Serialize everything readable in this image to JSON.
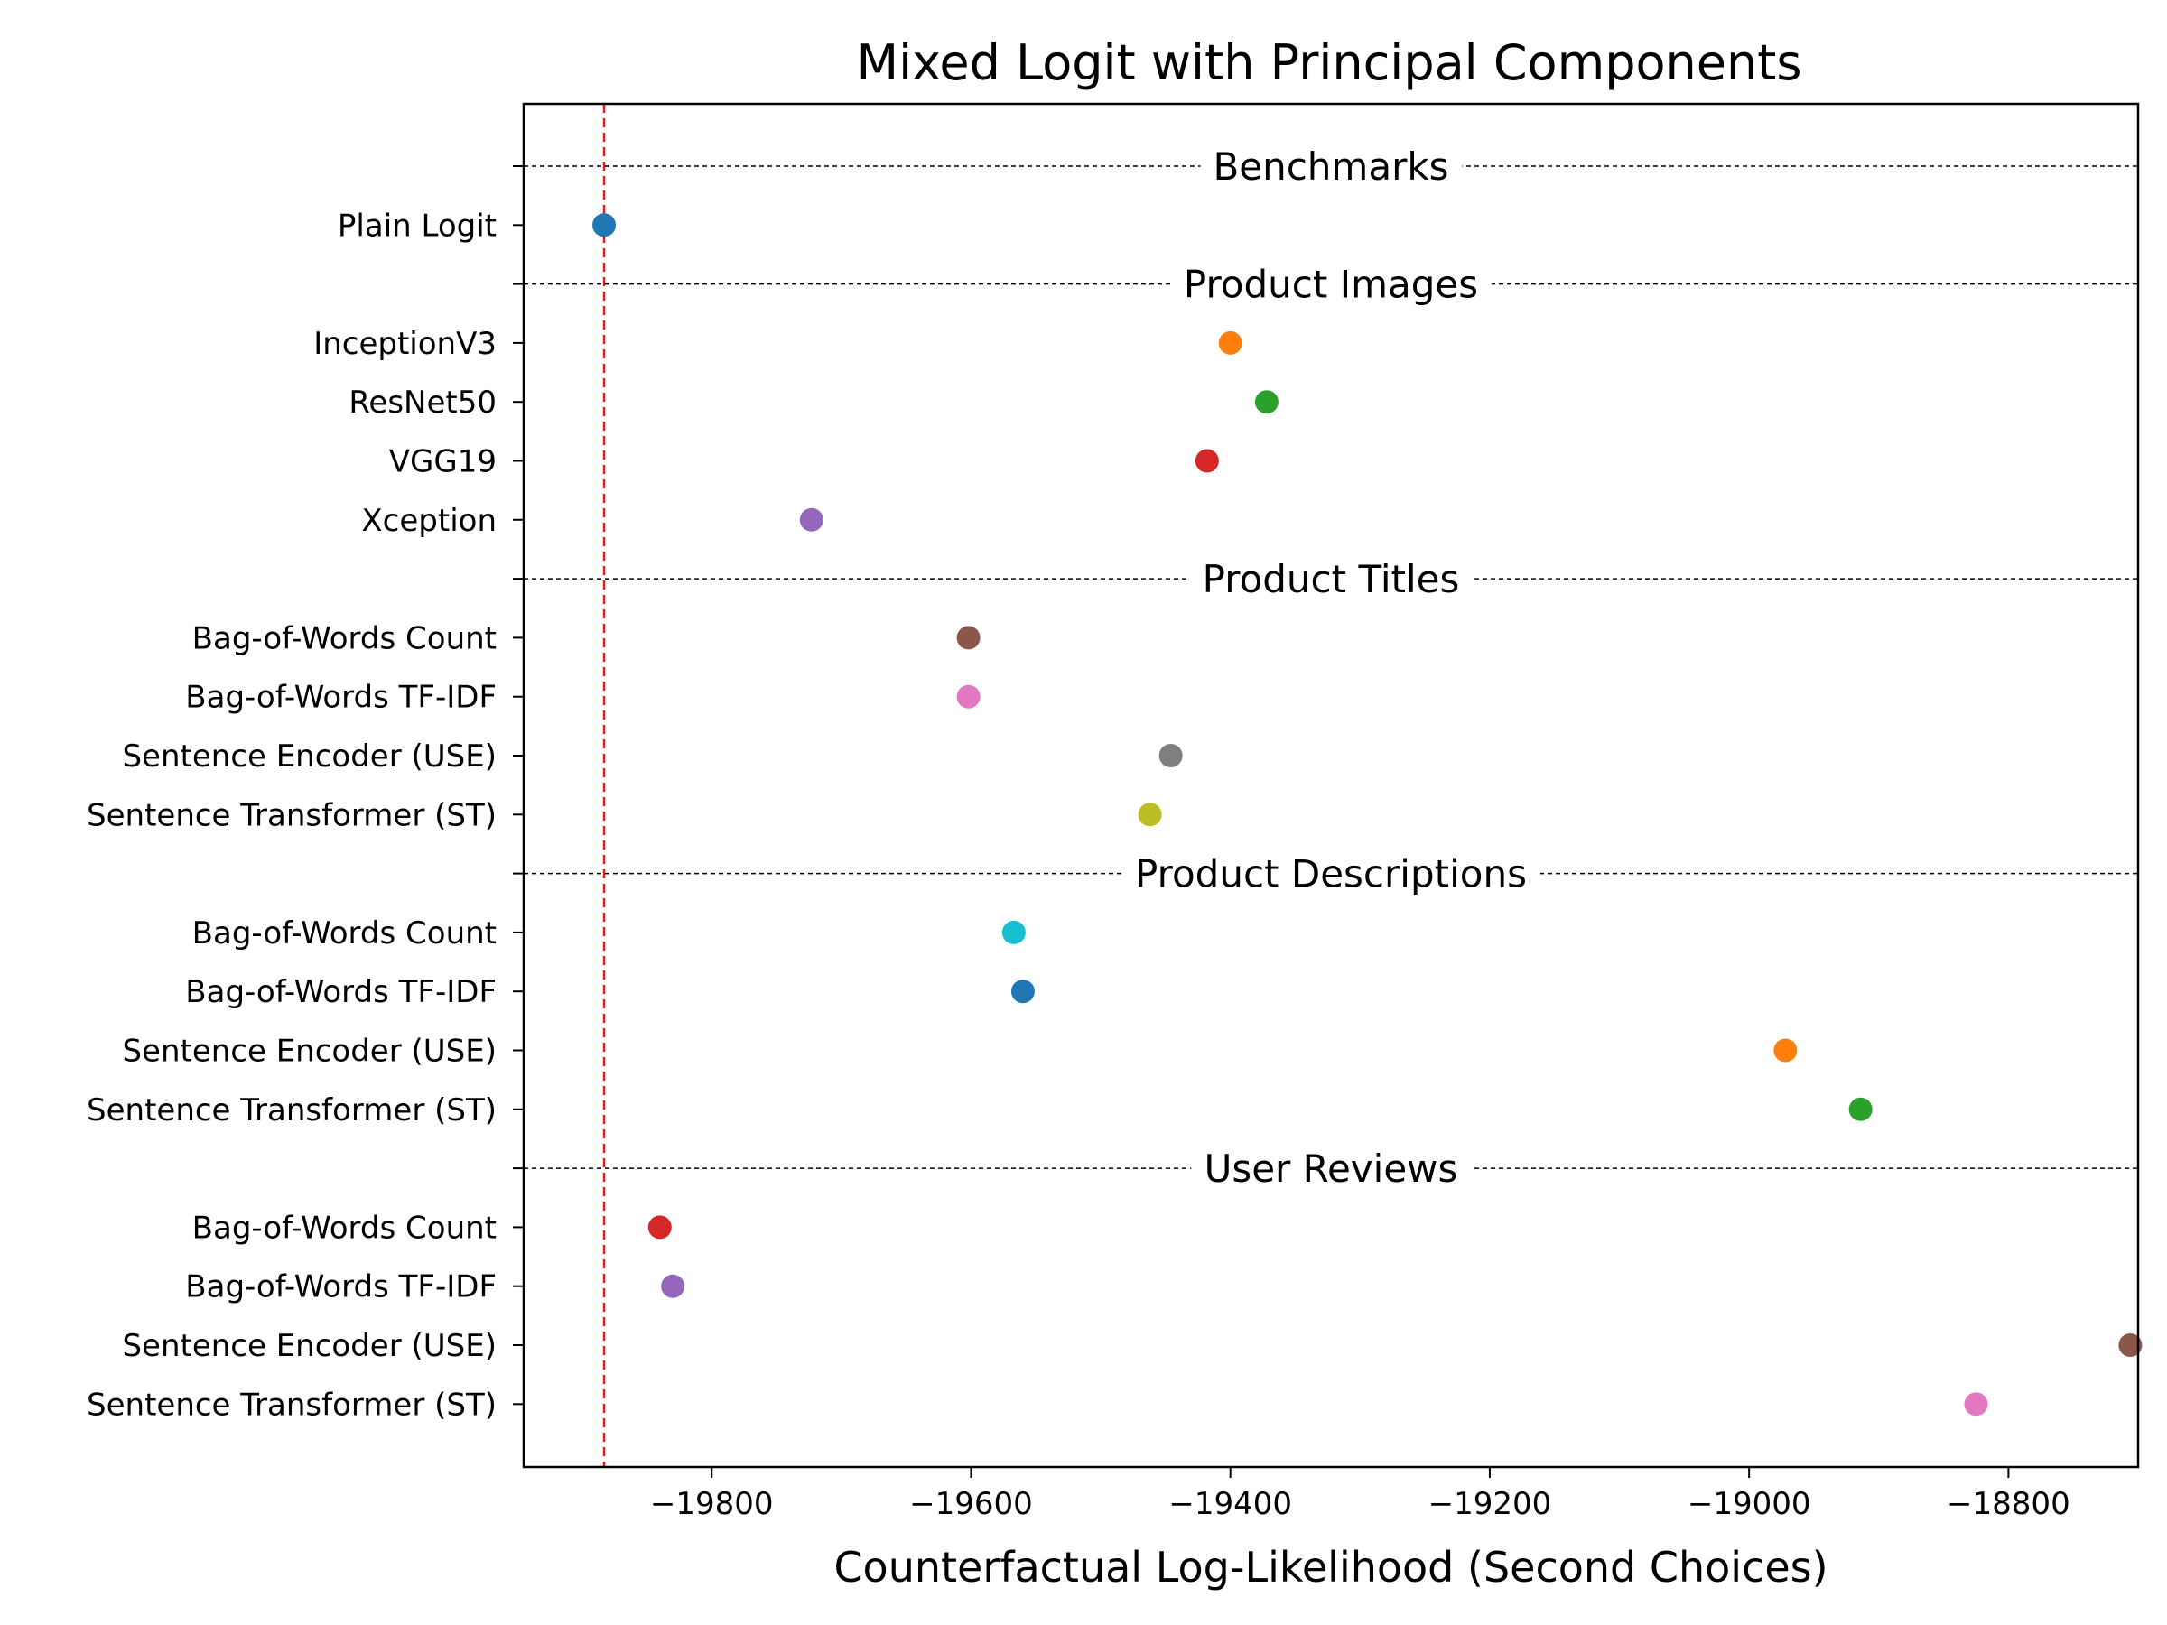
{
  "chart_data": {
    "type": "scatter",
    "title": "Mixed Logit with Principal Components",
    "xlabel": "Counterfactual Log-Likelihood (Second Choices)",
    "ylabel": "",
    "xlim": [
      -19945,
      -18700
    ],
    "xticks": [
      -19800,
      -19600,
      -19400,
      -19200,
      -19000,
      -18800
    ],
    "xtick_labels": [
      "−19800",
      "−19600",
      "−19400",
      "−19200",
      "−19000",
      "−18800"
    ],
    "grid": false,
    "reference_line": {
      "x": -19883,
      "color": "#e41a1c",
      "style": "dashed"
    },
    "groups": [
      {
        "label": "Benchmarks",
        "items": [
          {
            "label": "Plain Logit",
            "value": -19883,
            "color": "#1f77b4"
          }
        ]
      },
      {
        "label": "Product Images",
        "items": [
          {
            "label": "InceptionV3",
            "value": -19400,
            "color": "#ff7f0e"
          },
          {
            "label": "ResNet50",
            "value": -19372,
            "color": "#2ca02c"
          },
          {
            "label": "VGG19",
            "value": -19418,
            "color": "#d62728"
          },
          {
            "label": "Xception",
            "value": -19723,
            "color": "#9467bd"
          }
        ]
      },
      {
        "label": "Product Titles",
        "items": [
          {
            "label": "Bag-of-Words Count",
            "value": -19602,
            "color": "#8c564b"
          },
          {
            "label": "Bag-of-Words TF-IDF",
            "value": -19602,
            "color": "#e377c2"
          },
          {
            "label": "Sentence Encoder (USE)",
            "value": -19446,
            "color": "#7f7f7f"
          },
          {
            "label": "Sentence Transformer (ST)",
            "value": -19462,
            "color": "#bcbd22"
          }
        ]
      },
      {
        "label": "Product Descriptions",
        "items": [
          {
            "label": "Bag-of-Words Count",
            "value": -19567,
            "color": "#17becf"
          },
          {
            "label": "Bag-of-Words TF-IDF",
            "value": -19560,
            "color": "#1f77b4"
          },
          {
            "label": "Sentence Encoder (USE)",
            "value": -18972,
            "color": "#ff7f0e"
          },
          {
            "label": "Sentence Transformer (ST)",
            "value": -18914,
            "color": "#2ca02c"
          }
        ]
      },
      {
        "label": "User Reviews",
        "items": [
          {
            "label": "Bag-of-Words Count",
            "value": -19840,
            "color": "#d62728"
          },
          {
            "label": "Bag-of-Words TF-IDF",
            "value": -19830,
            "color": "#9467bd"
          },
          {
            "label": "Sentence Encoder (USE)",
            "value": -18706,
            "color": "#8c564b"
          },
          {
            "label": "Sentence Transformer (ST)",
            "value": -18825,
            "color": "#e377c2"
          }
        ]
      }
    ]
  }
}
